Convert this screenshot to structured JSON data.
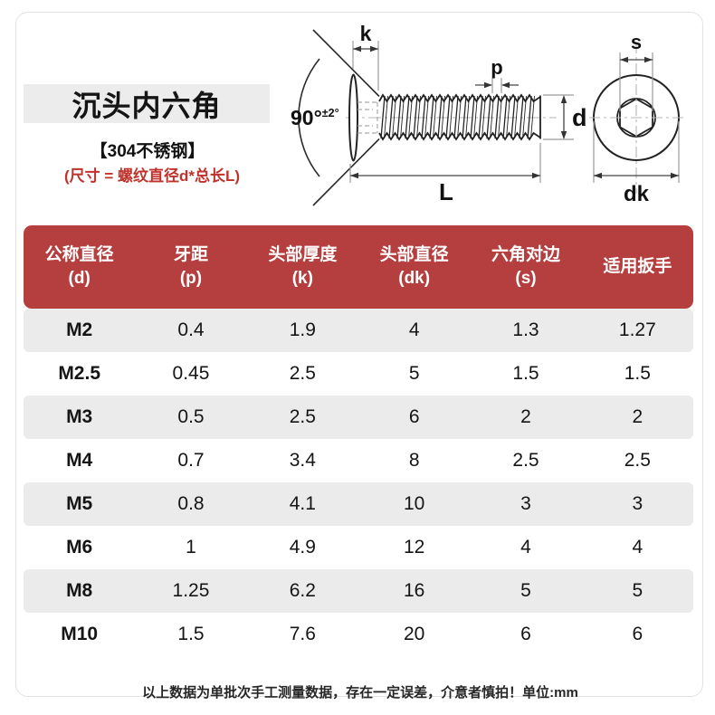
{
  "product": {
    "title": "沉头内六角",
    "material": "【304不锈钢】",
    "size_note": "(尺寸 = 螺纹直径d*总长L)"
  },
  "diagram": {
    "labels": {
      "k": "k",
      "p": "p",
      "d": "d",
      "L": "L",
      "s": "s",
      "dk": "dk",
      "angle": "90°",
      "angle_tol": "±2°"
    }
  },
  "table": {
    "columns": [
      {
        "title": "公称直径",
        "sub": "(d)"
      },
      {
        "title": "牙距",
        "sub": "(p)"
      },
      {
        "title": "头部厚度",
        "sub": "(k)"
      },
      {
        "title": "头部直径",
        "sub": "(dk)"
      },
      {
        "title": "六角对边",
        "sub": "(s)"
      },
      {
        "title": "适用扳手",
        "sub": ""
      }
    ],
    "rows": [
      [
        "M2",
        "0.4",
        "1.9",
        "4",
        "1.3",
        "1.27"
      ],
      [
        "M2.5",
        "0.45",
        "2.5",
        "5",
        "1.5",
        "1.5"
      ],
      [
        "M3",
        "0.5",
        "2.5",
        "6",
        "2",
        "2"
      ],
      [
        "M4",
        "0.7",
        "3.4",
        "8",
        "2.5",
        "2.5"
      ],
      [
        "M5",
        "0.8",
        "4.1",
        "10",
        "3",
        "3"
      ],
      [
        "M6",
        "1",
        "4.9",
        "12",
        "4",
        "4"
      ],
      [
        "M8",
        "1.25",
        "6.2",
        "16",
        "5",
        "5"
      ],
      [
        "M10",
        "1.5",
        "7.6",
        "20",
        "6",
        "6"
      ]
    ]
  },
  "footer": {
    "note": "以上数据为单批次手工测量数据，存在一定误差，介意者慎拍！单位:mm"
  },
  "colors": {
    "header_bg": "#b53e3e",
    "row_alt_bg": "#ebebeb",
    "accent_red": "#c0322c",
    "title_bar_bg": "#ececec"
  }
}
